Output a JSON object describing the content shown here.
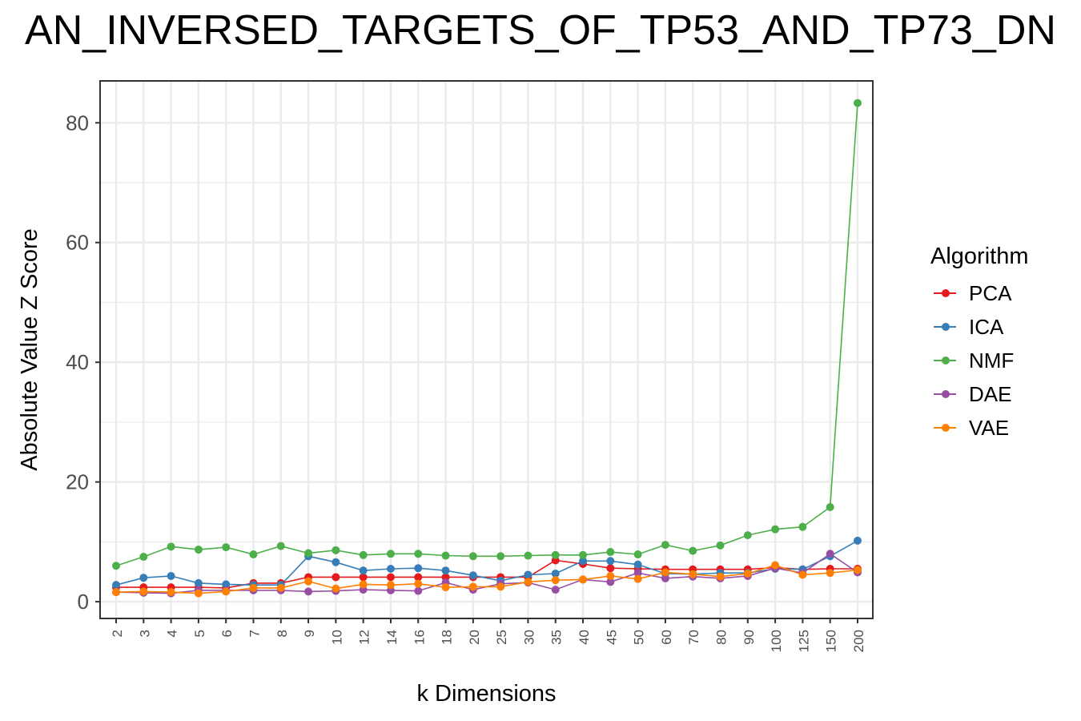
{
  "chart_data": {
    "type": "line",
    "title": "AN_INVERSED_TARGETS_OF_TP53_AND_TP73_DN",
    "xlabel": "k Dimensions",
    "ylabel": "Absolute Value Z Score",
    "legend_title": "Algorithm",
    "legend_position": "right",
    "grid": true,
    "ylim": [
      -2.8,
      87
    ],
    "yticks": [
      0,
      20,
      40,
      60,
      80
    ],
    "categories": [
      "2",
      "3",
      "4",
      "5",
      "6",
      "7",
      "8",
      "9",
      "10",
      "12",
      "14",
      "16",
      "18",
      "20",
      "25",
      "30",
      "35",
      "40",
      "45",
      "50",
      "60",
      "70",
      "80",
      "90",
      "100",
      "125",
      "150",
      "200"
    ],
    "series": [
      {
        "name": "PCA",
        "color": "#E41A1C",
        "values": [
          2.4,
          2.4,
          2.4,
          2.4,
          2.3,
          3.1,
          3.1,
          4.1,
          4.1,
          4.1,
          4.1,
          4.1,
          4.1,
          4.1,
          4.1,
          4.1,
          6.9,
          6.3,
          5.6,
          5.5,
          5.4,
          5.4,
          5.4,
          5.4,
          5.7,
          5.4,
          5.5,
          5.5
        ]
      },
      {
        "name": "ICA",
        "color": "#377EB8",
        "values": [
          2.8,
          4.0,
          4.3,
          3.1,
          2.9,
          2.8,
          2.8,
          7.6,
          6.6,
          5.2,
          5.5,
          5.6,
          5.2,
          4.4,
          3.5,
          4.5,
          4.7,
          6.8,
          6.8,
          6.2,
          4.7,
          4.6,
          4.8,
          4.8,
          5.5,
          5.4,
          7.6,
          10.2
        ]
      },
      {
        "name": "NMF",
        "color": "#4DAF4A",
        "values": [
          6.0,
          7.5,
          9.2,
          8.7,
          9.1,
          7.9,
          9.3,
          8.1,
          8.6,
          7.8,
          8.0,
          8.0,
          7.7,
          7.6,
          7.6,
          7.7,
          7.8,
          7.8,
          8.3,
          7.9,
          9.5,
          8.5,
          9.4,
          11.1,
          12.1,
          12.5,
          15.8,
          83.3
        ]
      },
      {
        "name": "DAE",
        "color": "#984EA3",
        "values": [
          1.6,
          1.5,
          1.4,
          1.9,
          1.9,
          1.9,
          1.9,
          1.7,
          1.8,
          2.0,
          1.9,
          1.8,
          3.2,
          2.0,
          3.0,
          3.2,
          2.0,
          3.7,
          3.3,
          4.8,
          3.9,
          4.2,
          3.9,
          4.3,
          5.6,
          4.8,
          8.0,
          4.9
        ]
      },
      {
        "name": "VAE",
        "color": "#FF7F00",
        "values": [
          1.6,
          1.7,
          1.6,
          1.4,
          1.7,
          2.3,
          2.3,
          3.4,
          2.2,
          2.9,
          2.8,
          3.0,
          2.4,
          2.5,
          2.5,
          3.3,
          3.6,
          3.7,
          4.3,
          3.8,
          4.9,
          4.6,
          4.2,
          4.7,
          6.1,
          4.5,
          4.8,
          5.3
        ]
      }
    ]
  }
}
